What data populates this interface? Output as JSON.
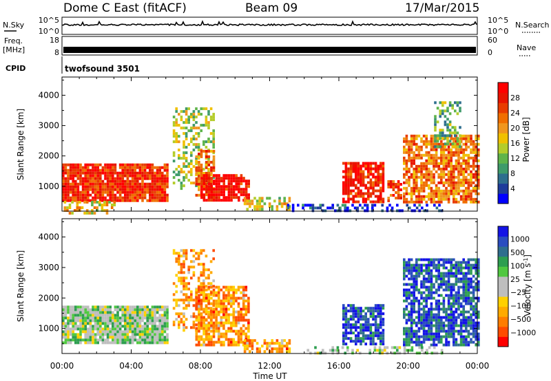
{
  "header": {
    "station": "Dome C East (fitACF)",
    "beam": "Beam 09",
    "date": "17/Mar/2015"
  },
  "strips": {
    "nsky_label": "N.Sky",
    "nsky_ticks": [
      "10^5",
      "10^0"
    ],
    "nsearch_label": "N.Search",
    "nsearch_ticks": [
      "10^5",
      "10^0"
    ],
    "freq_label": "Freq.",
    "freq_unit": "[MHz]",
    "freq_ticks": [
      "18",
      "8"
    ],
    "nave_label": "Nave",
    "nave_ticks": [
      "60",
      "0"
    ],
    "cpid_label": "CPID",
    "cpid_value": "twofsound 3501"
  },
  "colors": {
    "power": [
      "#0000ff",
      "#1e3c9b",
      "#2e6e8e",
      "#3f9b6a",
      "#5fb44a",
      "#b4cc2a",
      "#f0c000",
      "#f0961e",
      "#f06e00",
      "#e83c00",
      "#e81400",
      "#ff0000"
    ],
    "velocity": [
      "#ff0000",
      "#ff4b00",
      "#ff7d00",
      "#ffaa00",
      "#ffd000",
      "#bebebe",
      "#bebebe",
      "#50c840",
      "#2e9e50",
      "#2f6e8e",
      "#2a4dc0",
      "#1414e6"
    ]
  },
  "chart_data": [
    {
      "type": "heatmap",
      "name": "power",
      "xlabel": "",
      "ylabel": "Slant Range [km]",
      "xlim": [
        0,
        24
      ],
      "ylim": [
        180,
        4600
      ],
      "y_ticks": [
        1000,
        2000,
        3000,
        4000
      ],
      "colorbar": {
        "label": "Power [dB]",
        "range": [
          0,
          32
        ],
        "ticks": [
          "4",
          "8",
          "12",
          "16",
          "20",
          "24",
          "28"
        ],
        "tick_values": [
          4,
          8,
          12,
          16,
          20,
          24,
          28
        ]
      },
      "echo_regions": [
        {
          "t": [
            0.0,
            6.1
          ],
          "r": [
            500,
            1750
          ],
          "level": 0.85,
          "density": 0.92
        },
        {
          "t": [
            0.1,
            3.0
          ],
          "r": [
            150,
            520
          ],
          "level": 0.55,
          "density": 0.45
        },
        {
          "t": [
            6.4,
            8.7
          ],
          "r": [
            900,
            3600
          ],
          "level": 0.45,
          "density": 0.38
        },
        {
          "t": [
            7.7,
            8.8
          ],
          "r": [
            600,
            2200
          ],
          "level": 0.7,
          "density": 0.6
        },
        {
          "t": [
            8.0,
            10.8
          ],
          "r": [
            500,
            1400
          ],
          "level": 0.9,
          "density": 0.85
        },
        {
          "t": [
            10.5,
            13.2
          ],
          "r": [
            200,
            650
          ],
          "level": 0.5,
          "density": 0.6
        },
        {
          "t": [
            16.2,
            18.6
          ],
          "r": [
            500,
            1800
          ],
          "level": 0.88,
          "density": 0.75
        },
        {
          "t": [
            18.8,
            19.6
          ],
          "r": [
            500,
            1200
          ],
          "level": 0.8,
          "density": 0.6
        },
        {
          "t": [
            19.7,
            24.0
          ],
          "r": [
            500,
            2700
          ],
          "level": 0.7,
          "density": 0.75
        },
        {
          "t": [
            21.5,
            23.0
          ],
          "r": [
            2300,
            3800
          ],
          "level": 0.35,
          "density": 0.5
        },
        {
          "t": [
            13.0,
            22.0
          ],
          "r": [
            180,
            420
          ],
          "level": 0.1,
          "density": 0.45
        }
      ]
    },
    {
      "type": "heatmap",
      "name": "velocity",
      "xlabel": "Time UT",
      "ylabel": "Slant Range [km]",
      "xlim": [
        0,
        24
      ],
      "ylim": [
        180,
        4600
      ],
      "x_ticks": [
        "00:00",
        "04:00",
        "08:00",
        "12:00",
        "16:00",
        "20:00",
        "00:00"
      ],
      "x_tick_values": [
        0,
        4,
        8,
        12,
        16,
        20,
        24
      ],
      "y_ticks": [
        1000,
        2000,
        3000,
        4000
      ],
      "colorbar": {
        "label": "Velocity [m s",
        "label_sup": "-1",
        "label_end": "]",
        "ticks": [
          "1000",
          "500",
          "100",
          "25",
          "−25",
          "−100",
          "−500",
          "−1000"
        ],
        "tick_values": [
          1000,
          500,
          100,
          25,
          -25,
          -100,
          -500,
          -1000
        ]
      },
      "echo_regions": [
        {
          "t": [
            0.0,
            6.1
          ],
          "r": [
            500,
            1750
          ],
          "level": 0.55,
          "density": 0.92
        },
        {
          "t": [
            6.4,
            8.7
          ],
          "r": [
            900,
            3600
          ],
          "level": 0.28,
          "density": 0.38
        },
        {
          "t": [
            7.7,
            10.8
          ],
          "r": [
            500,
            2400
          ],
          "level": 0.25,
          "density": 0.75
        },
        {
          "t": [
            10.5,
            13.2
          ],
          "r": [
            200,
            650
          ],
          "level": 0.25,
          "density": 0.6
        },
        {
          "t": [
            16.2,
            18.6
          ],
          "r": [
            500,
            1800
          ],
          "level": 0.88,
          "density": 0.75
        },
        {
          "t": [
            19.7,
            24.0
          ],
          "r": [
            500,
            3300
          ],
          "level": 0.85,
          "density": 0.75
        },
        {
          "t": [
            14.0,
            22.0
          ],
          "r": [
            180,
            420
          ],
          "level": 0.55,
          "density": 0.45
        }
      ]
    }
  ]
}
